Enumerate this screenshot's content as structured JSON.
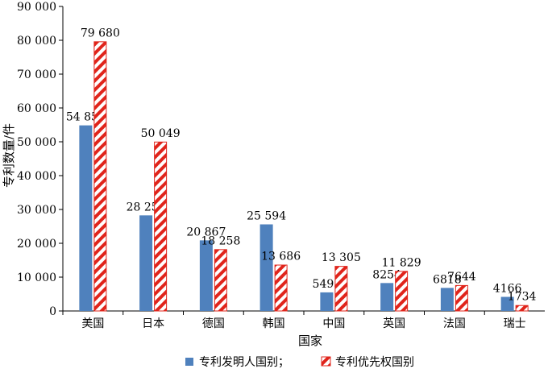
{
  "chart_data": {
    "type": "bar",
    "title": "",
    "xlabel": "国家",
    "ylabel": "专利数量/件",
    "ylim": [
      0,
      90000
    ],
    "yticks": [
      0,
      10000,
      20000,
      30000,
      40000,
      50000,
      60000,
      70000,
      80000,
      90000
    ],
    "ytick_labels": [
      "0",
      "10 000",
      "20 000",
      "30 000",
      "40 000",
      "50 000",
      "60 000",
      "70 000",
      "80 000",
      "90 000"
    ],
    "categories": [
      "美国",
      "日本",
      "德国",
      "韩国",
      "中国",
      "英国",
      "法国",
      "瑞士"
    ],
    "grid": false,
    "legend_position": "bottom",
    "series": [
      {
        "name": "专利发明人国别；",
        "values": [
          54852,
          28250,
          20867,
          25594,
          5493,
          8254,
          6818,
          4166
        ],
        "labels": [
          "54 852",
          "28 250",
          "20 867",
          "25 594",
          "5493",
          "8254",
          "6818",
          "4166"
        ],
        "color": "#4f81bd",
        "pattern": "solid"
      },
      {
        "name": "专利优先权国别",
        "values": [
          79680,
          50049,
          18258,
          13686,
          13305,
          11829,
          7644,
          1734
        ],
        "labels": [
          "79 680",
          "50 049",
          "18 258",
          "13 686",
          "13 305",
          "11 829",
          "7644",
          "1734"
        ],
        "color": "#e0241b",
        "pattern": "diagonal-hatch"
      }
    ]
  }
}
